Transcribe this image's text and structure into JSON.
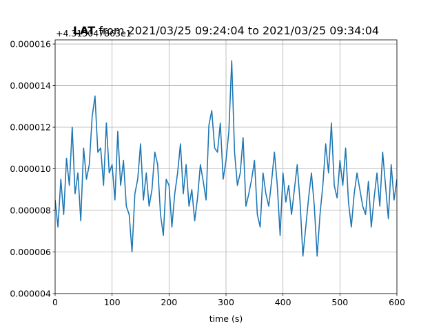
{
  "chart_data": {
    "type": "line",
    "title_bold": "LAT",
    "title_rest": " from 2021/03/25 09:24:04 to 2021/03/25 09:34:04",
    "offset_text": "+4.315047863e1",
    "xlabel": "time (s)",
    "ylabel": "",
    "xlim": [
      0,
      600
    ],
    "ylim": [
      4e-06,
      1.62e-05
    ],
    "x_ticks": [
      0,
      100,
      200,
      300,
      400,
      500,
      600
    ],
    "x_tick_labels": [
      "0",
      "100",
      "200",
      "300",
      "400",
      "500",
      "600"
    ],
    "y_ticks": [
      4e-06,
      6e-06,
      8e-06,
      1e-05,
      1.2e-05,
      1.4e-05,
      1.6e-05
    ],
    "y_tick_labels": [
      "0.000004",
      "0.000006",
      "0.000008",
      "0.000010",
      "0.000012",
      "0.000014",
      "0.000016"
    ],
    "grid": true,
    "series": [
      {
        "color": "#1f77b4",
        "x": [
          0,
          5,
          10,
          15,
          20,
          25,
          30,
          35,
          40,
          45,
          50,
          55,
          60,
          65,
          70,
          75,
          80,
          85,
          90,
          95,
          100,
          105,
          110,
          115,
          120,
          125,
          130,
          135,
          140,
          145,
          150,
          155,
          160,
          165,
          170,
          175,
          180,
          185,
          190,
          195,
          200,
          205,
          210,
          215,
          220,
          225,
          230,
          235,
          240,
          245,
          250,
          255,
          260,
          265,
          270,
          275,
          280,
          285,
          290,
          295,
          300,
          305,
          310,
          315,
          320,
          325,
          330,
          335,
          340,
          345,
          350,
          355,
          360,
          365,
          370,
          375,
          380,
          385,
          390,
          395,
          400,
          405,
          410,
          415,
          420,
          425,
          430,
          435,
          440,
          445,
          450,
          455,
          460,
          465,
          470,
          475,
          480,
          485,
          490,
          495,
          500,
          505,
          510,
          515,
          520,
          525,
          530,
          535,
          540,
          545,
          550,
          555,
          560,
          565,
          570,
          575,
          580,
          585,
          590,
          595,
          600
        ],
        "values": [
          8.5e-06,
          7.2e-06,
          9.5e-06,
          7.8e-06,
          1.05e-05,
          9.2e-06,
          1.2e-05,
          8.8e-06,
          9.8e-06,
          7.5e-06,
          1.1e-05,
          9.5e-06,
          1.02e-05,
          1.25e-05,
          1.35e-05,
          1.08e-05,
          1.1e-05,
          9.2e-06,
          1.22e-05,
          9.8e-06,
          1.02e-05,
          8.5e-06,
          1.18e-05,
          9.2e-06,
          1.04e-05,
          8.2e-06,
          7.8e-06,
          6e-06,
          8.8e-06,
          9.5e-06,
          1.12e-05,
          8.5e-06,
          9.8e-06,
          8.2e-06,
          9e-06,
          1.08e-05,
          1.02e-05,
          7.8e-06,
          6.8e-06,
          9.5e-06,
          9.2e-06,
          7.2e-06,
          8.8e-06,
          9.8e-06,
          1.12e-05,
          8.8e-06,
          1.02e-05,
          8.2e-06,
          9e-06,
          7.5e-06,
          8.6e-06,
          1.02e-05,
          9.4e-06,
          8.5e-06,
          1.21e-05,
          1.28e-05,
          1.1e-05,
          1.08e-05,
          1.22e-05,
          9.5e-06,
          1.04e-05,
          1.18e-05,
          1.52e-05,
          1.08e-05,
          9.2e-06,
          9.8e-06,
          1.15e-05,
          8.2e-06,
          8.8e-06,
          9.5e-06,
          1.04e-05,
          7.8e-06,
          7.2e-06,
          9.8e-06,
          8.8e-06,
          8.2e-06,
          9.4e-06,
          1.08e-05,
          9.2e-06,
          6.8e-06,
          9.8e-06,
          8.4e-06,
          9.2e-06,
          7.8e-06,
          9e-06,
          1.02e-05,
          8.4e-06,
          5.8e-06,
          7.2e-06,
          8.6e-06,
          9.8e-06,
          8.2e-06,
          5.8e-06,
          7.8e-06,
          9.2e-06,
          1.12e-05,
          9.8e-06,
          1.22e-05,
          9.2e-06,
          8.6e-06,
          1.04e-05,
          9.2e-06,
          1.1e-05,
          8.4e-06,
          7.2e-06,
          8.8e-06,
          9.8e-06,
          9e-06,
          8.2e-06,
          7.8e-06,
          9.4e-06,
          7.2e-06,
          8.6e-06,
          9.8e-06,
          8.2e-06,
          1.08e-05,
          9.2e-06,
          7.6e-06,
          1.02e-05,
          8.5e-06,
          9.5e-06
        ]
      }
    ]
  }
}
